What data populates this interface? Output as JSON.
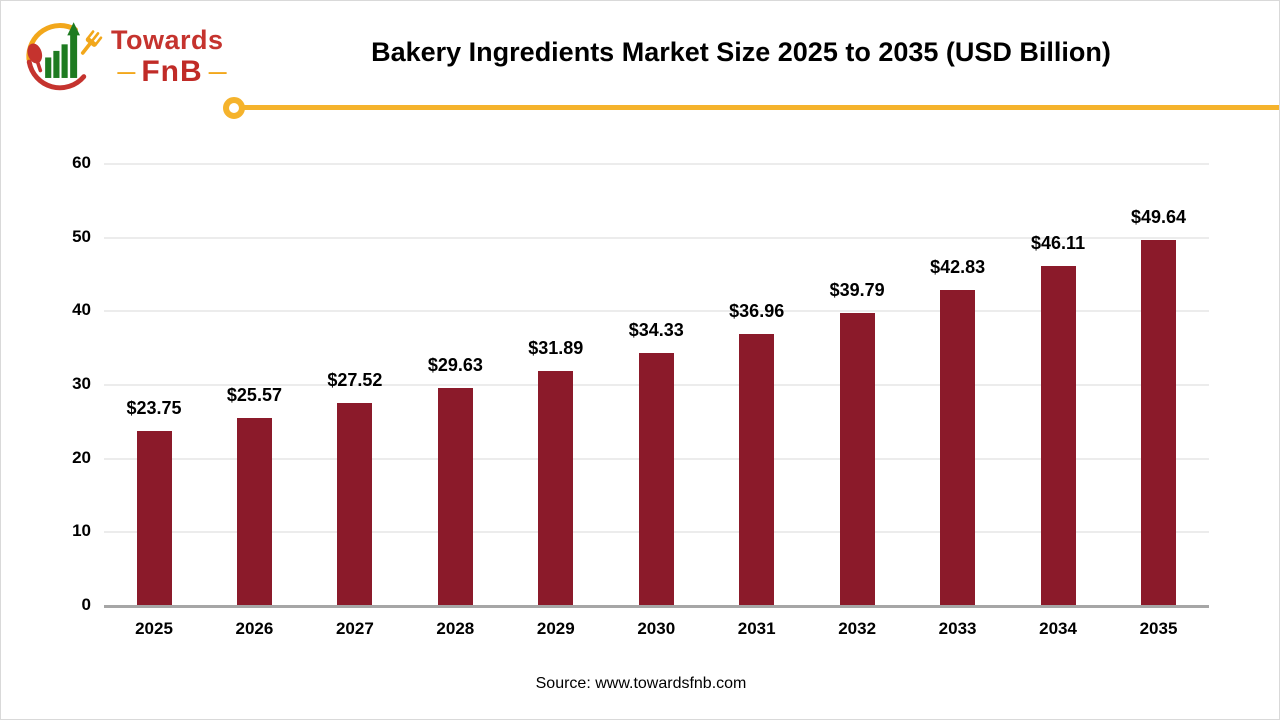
{
  "page": {
    "background": "#FFFFFF",
    "border_color": "#D9D9D9"
  },
  "logo": {
    "brand_top": "Towards",
    "brand_bottom": "FnB",
    "dash": "—",
    "colors": {
      "red": "#C5332E",
      "deep_red": "#C02B27",
      "yellow": "#F2A71B",
      "green": "#1E7B21"
    }
  },
  "header": {
    "divider_color": "#F5B32C"
  },
  "chart_data": {
    "type": "bar",
    "title": "Bakery Ingredients Market Size 2025 to 2035 (USD Billion)",
    "categories": [
      "2025",
      "2026",
      "2027",
      "2028",
      "2029",
      "2030",
      "2031",
      "2032",
      "2033",
      "2034",
      "2035"
    ],
    "values": [
      23.75,
      25.57,
      27.52,
      29.63,
      31.89,
      34.33,
      36.96,
      39.79,
      42.83,
      46.11,
      49.64
    ],
    "data_labels": [
      "$23.75",
      "$25.57",
      "$27.52",
      "$29.63",
      "$31.89",
      "$34.33",
      "$36.96",
      "$39.79",
      "$42.83",
      "$46.11",
      "$49.64"
    ],
    "xlabel": "",
    "ylabel": "",
    "ylim": [
      0,
      60
    ],
    "yticks": [
      0,
      10,
      20,
      30,
      40,
      50,
      60
    ],
    "grid": true,
    "legend_position": "none",
    "bar_color": "#8B1A2A",
    "axis_line_color": "#A6A6A6",
    "gridline_color": "#ECECEC"
  },
  "footer": {
    "source": "Source: www.towardsfnb.com"
  }
}
